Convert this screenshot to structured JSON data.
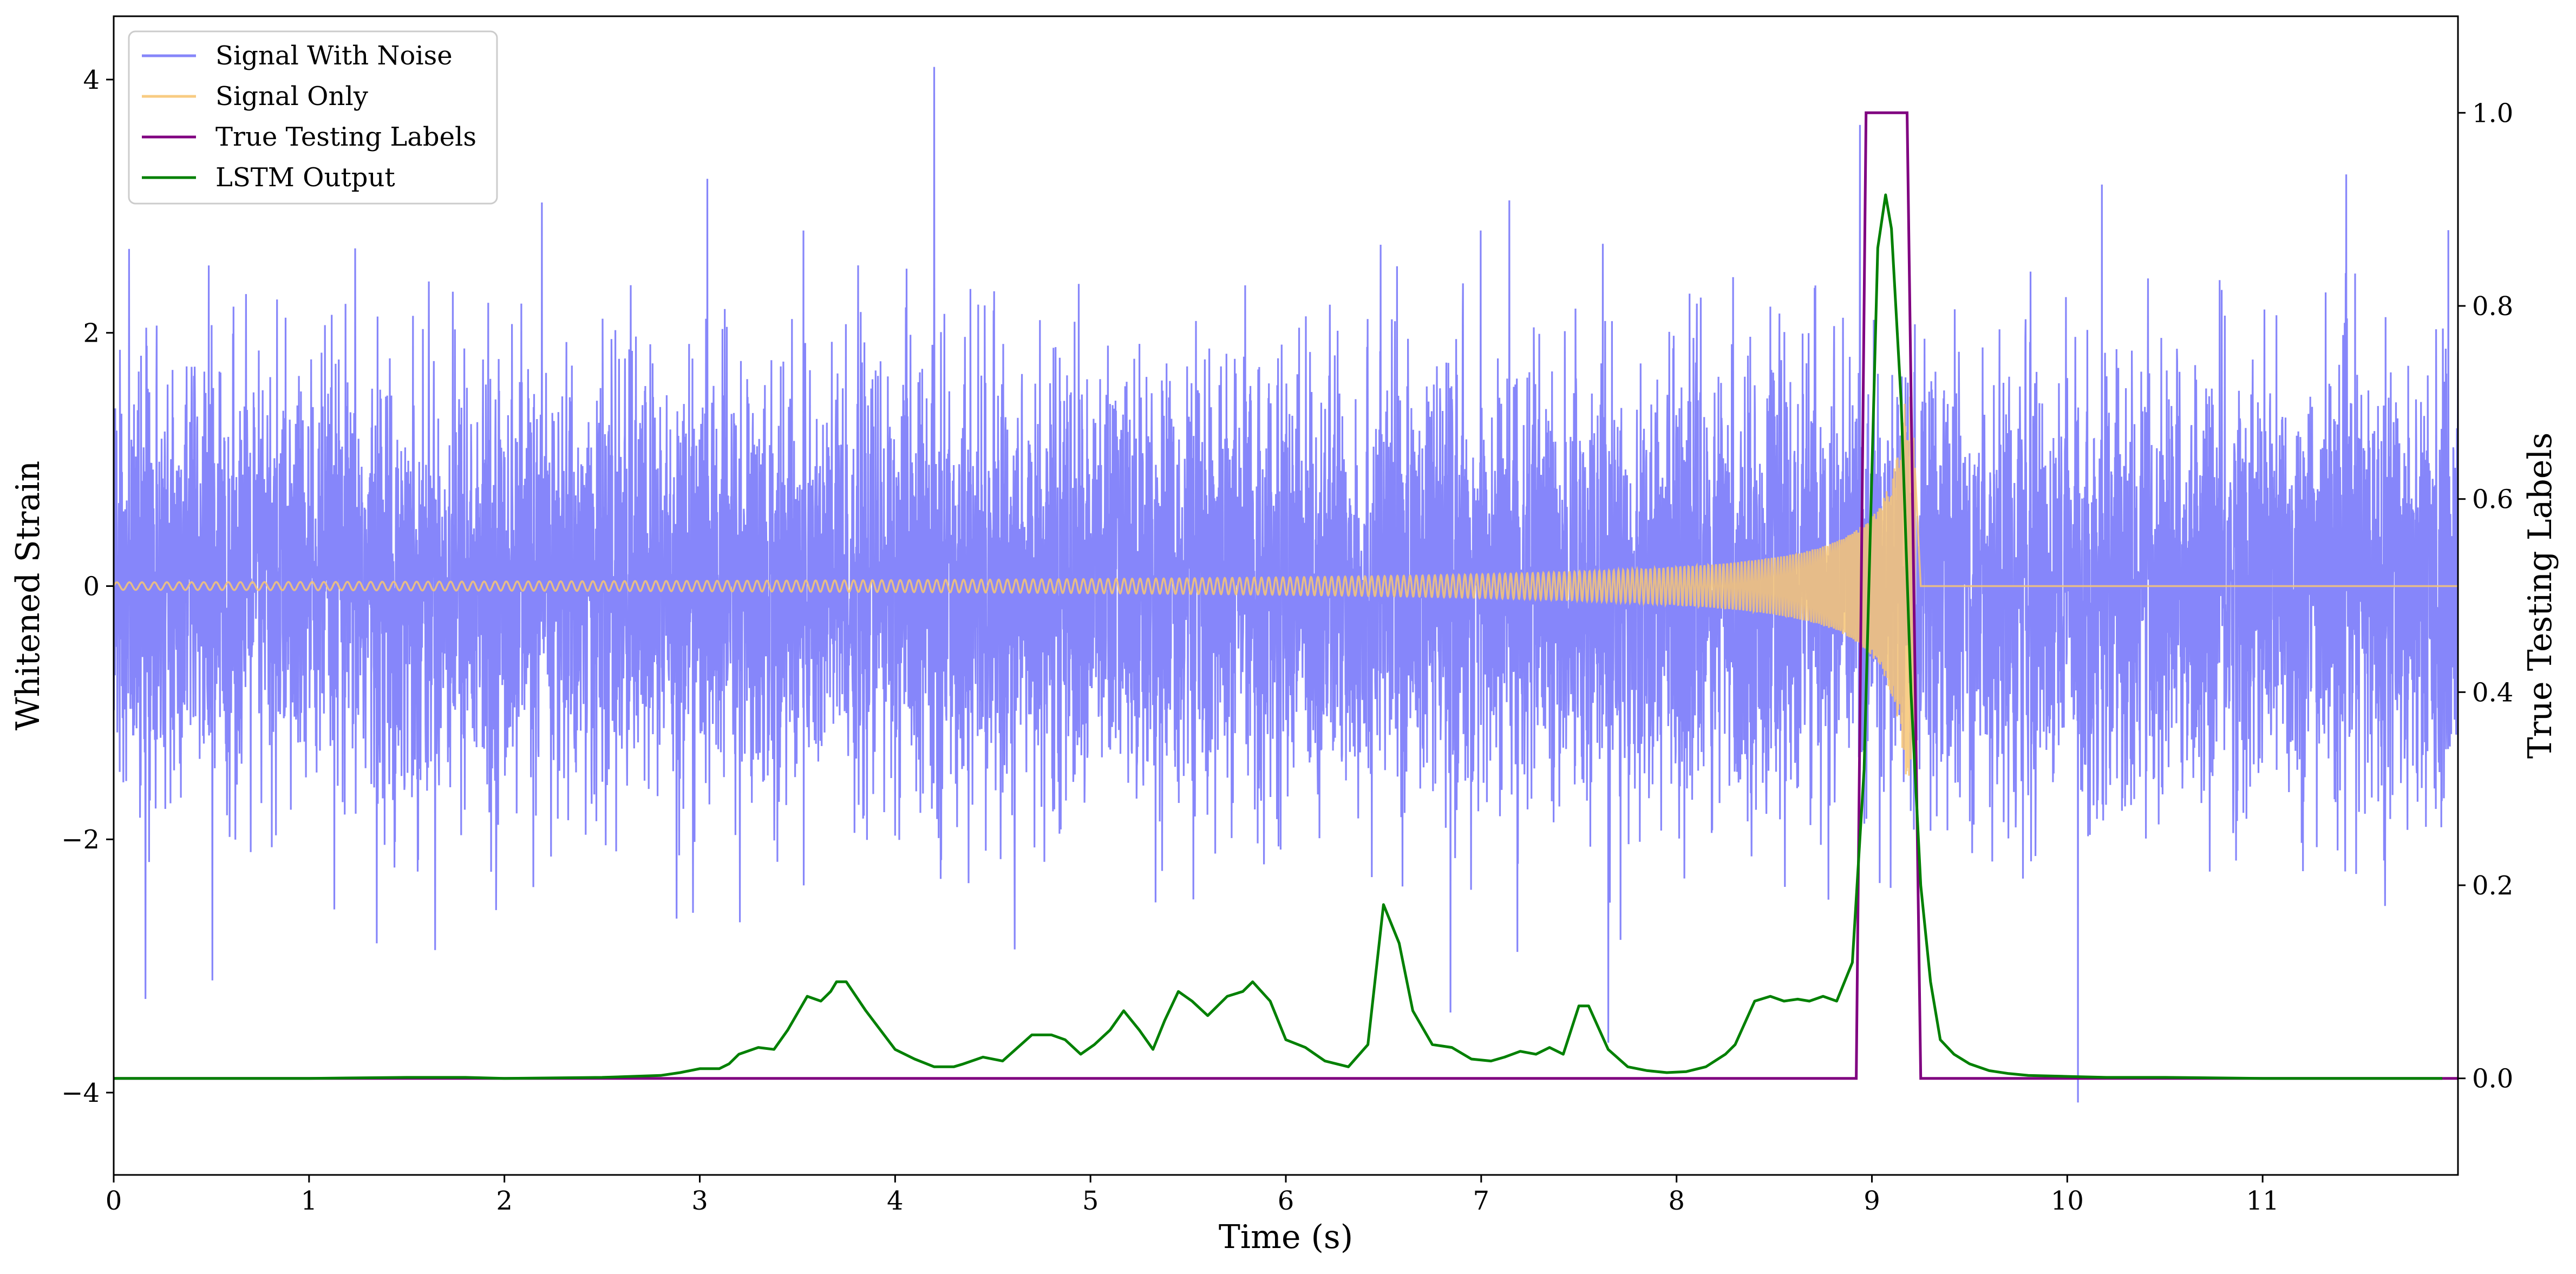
{
  "chart_data": {
    "type": "line",
    "title": "",
    "xlabel": "Time (s)",
    "ylabel": "Whitened Strain",
    "y2label": "True Testing Labels",
    "xlim": [
      0,
      12
    ],
    "ylim": [
      -4.65,
      4.5
    ],
    "y2lim": [
      -0.1,
      1.1
    ],
    "x_ticks": [
      0,
      1,
      2,
      3,
      4,
      5,
      6,
      7,
      8,
      9,
      10,
      11
    ],
    "y_ticks": [
      -4,
      -2,
      0,
      2,
      4
    ],
    "y_tick_labels": [
      "−4",
      "−2",
      "0",
      "2",
      "4"
    ],
    "y2_ticks": [
      0.0,
      0.2,
      0.4,
      0.6,
      0.8,
      1.0
    ],
    "y2_tick_labels": [
      "0.0",
      "0.2",
      "0.4",
      "0.6",
      "0.8",
      "1.0"
    ],
    "grid": false,
    "legend_position": "top-left",
    "series": [
      {
        "name": "Signal With Noise",
        "axis": "left",
        "color": "#7f7ffa",
        "description": "Gaussian-like whitened noise, amplitude mostly within ±2, spikes reaching about ±4",
        "amplitude_std": 0.85,
        "peak_max": 4.1,
        "peak_min": -4.3
      },
      {
        "name": "Signal Only",
        "axis": "left",
        "color": "#f7c574",
        "description": "Chirp waveform, amplitude growing from ~0.03 to ~1.5 near t=9.2 s, then zero",
        "x_start": 0,
        "x_merge": 9.22,
        "x_end": 12,
        "amplitude_start": 0.03,
        "amplitude_peak": 1.5
      },
      {
        "name": "True Testing Labels",
        "axis": "right",
        "color": "#800080",
        "x": [
          0,
          8.92,
          8.97,
          9.18,
          9.25,
          12
        ],
        "y": [
          0,
          0,
          1.0,
          1.0,
          0,
          0
        ]
      },
      {
        "name": "LSTM Output",
        "axis": "right",
        "color": "#008000",
        "x": [
          0,
          1.0,
          1.5,
          1.8,
          2.0,
          2.5,
          2.8,
          2.9,
          3.0,
          3.1,
          3.15,
          3.2,
          3.3,
          3.38,
          3.45,
          3.55,
          3.62,
          3.67,
          3.7,
          3.75,
          3.85,
          4.0,
          4.1,
          4.2,
          4.3,
          4.35,
          4.45,
          4.55,
          4.7,
          4.8,
          4.87,
          4.95,
          5.02,
          5.1,
          5.17,
          5.25,
          5.32,
          5.38,
          5.45,
          5.52,
          5.6,
          5.7,
          5.78,
          5.83,
          5.92,
          6.0,
          6.1,
          6.2,
          6.32,
          6.42,
          6.5,
          6.58,
          6.65,
          6.75,
          6.85,
          6.95,
          7.05,
          7.12,
          7.2,
          7.28,
          7.35,
          7.42,
          7.5,
          7.55,
          7.65,
          7.75,
          7.85,
          7.95,
          8.05,
          8.15,
          8.25,
          8.3,
          8.4,
          8.48,
          8.55,
          8.62,
          8.68,
          8.75,
          8.82,
          8.9,
          8.96,
          9.03,
          9.07,
          9.1,
          9.15,
          9.2,
          9.25,
          9.3,
          9.35,
          9.42,
          9.5,
          9.6,
          9.7,
          9.8,
          10.0,
          10.2,
          10.5,
          11.0,
          11.5,
          11.92
        ],
        "y": [
          0.0,
          0.0,
          0.001,
          0.001,
          0.0,
          0.001,
          0.003,
          0.006,
          0.01,
          0.01,
          0.015,
          0.025,
          0.032,
          0.03,
          0.05,
          0.085,
          0.08,
          0.09,
          0.1,
          0.1,
          0.07,
          0.03,
          0.02,
          0.012,
          0.012,
          0.015,
          0.022,
          0.018,
          0.045,
          0.045,
          0.04,
          0.025,
          0.035,
          0.05,
          0.07,
          0.05,
          0.03,
          0.06,
          0.09,
          0.08,
          0.065,
          0.085,
          0.09,
          0.1,
          0.08,
          0.04,
          0.032,
          0.018,
          0.012,
          0.035,
          0.18,
          0.14,
          0.07,
          0.035,
          0.032,
          0.02,
          0.018,
          0.022,
          0.028,
          0.025,
          0.032,
          0.025,
          0.075,
          0.075,
          0.03,
          0.012,
          0.008,
          0.006,
          0.007,
          0.012,
          0.025,
          0.035,
          0.08,
          0.085,
          0.08,
          0.082,
          0.08,
          0.085,
          0.08,
          0.12,
          0.32,
          0.86,
          0.915,
          0.88,
          0.7,
          0.4,
          0.2,
          0.1,
          0.04,
          0.025,
          0.015,
          0.008,
          0.005,
          0.003,
          0.002,
          0.001,
          0.001,
          0.0,
          0.0,
          0.0
        ]
      }
    ]
  }
}
